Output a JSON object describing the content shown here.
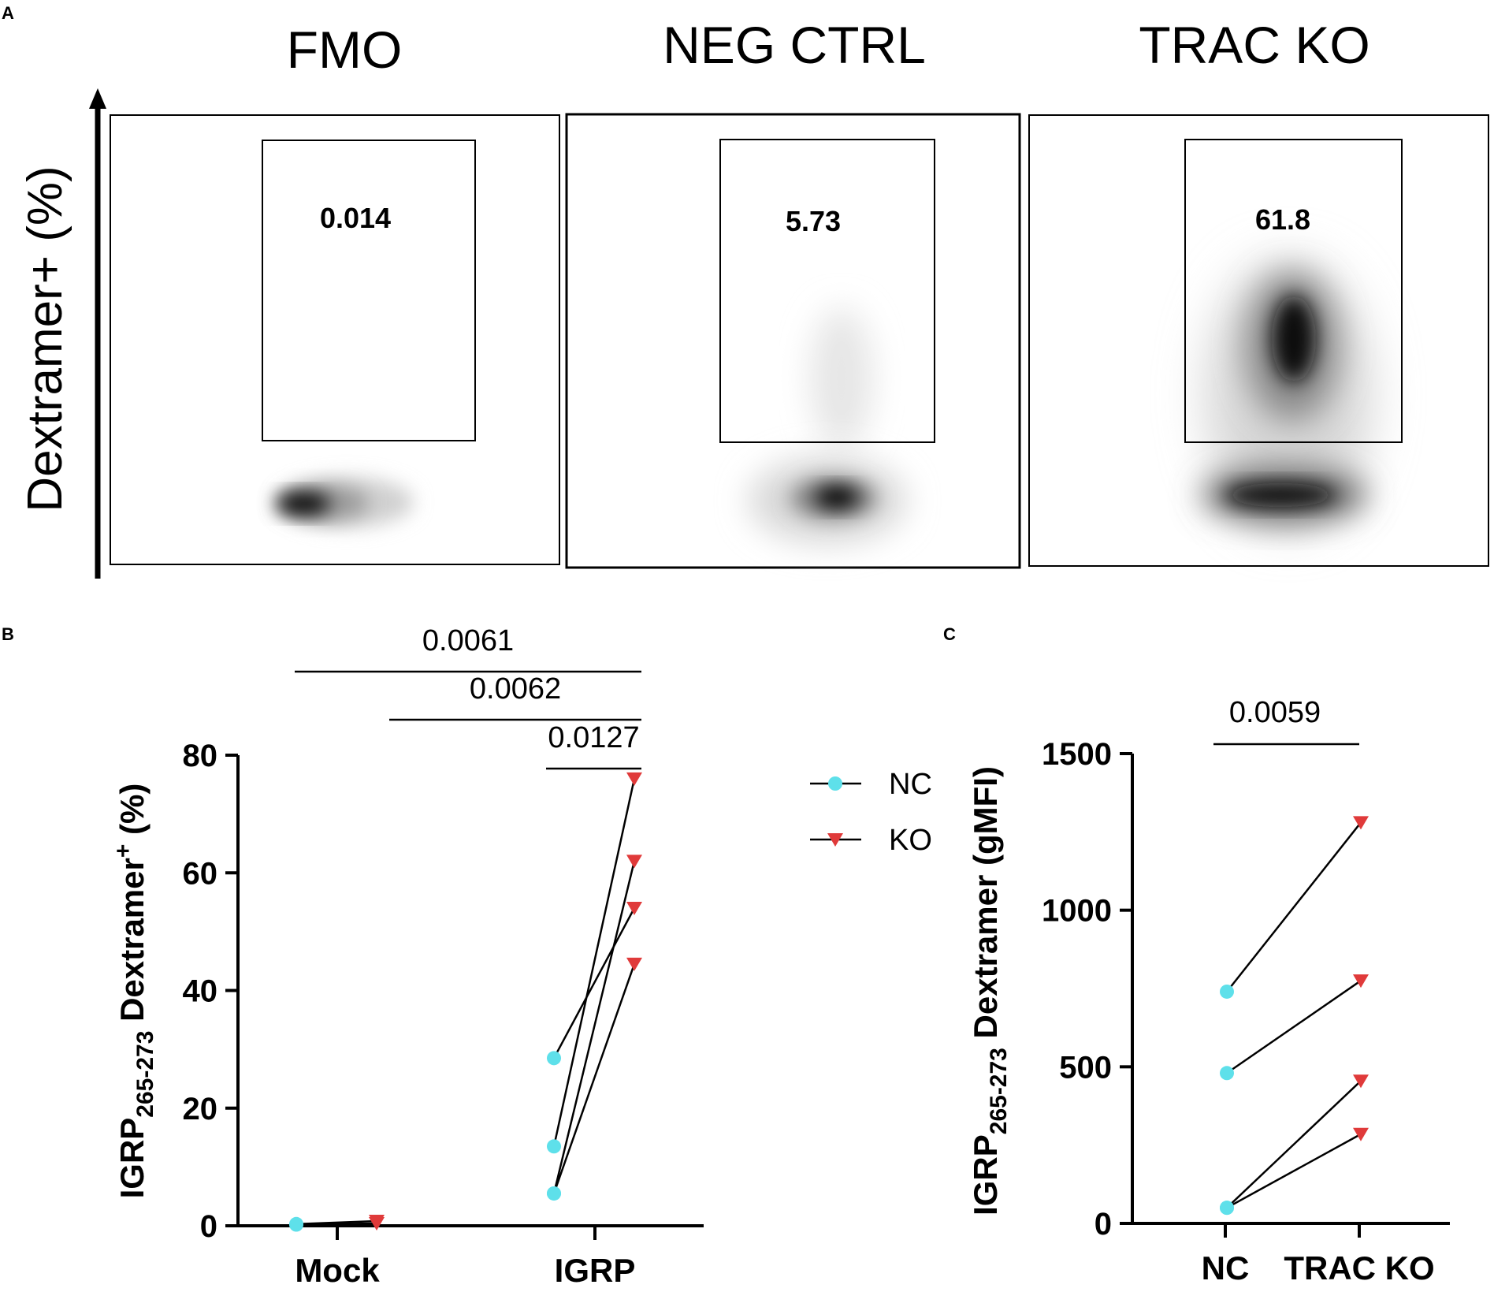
{
  "panel_a": {
    "letter": "A",
    "y_axis_label": "Dextramer+ (%)",
    "plots": [
      {
        "title": "FMO",
        "gate_value": "0.014"
      },
      {
        "title": "NEG CTRL",
        "gate_value": "5.73"
      },
      {
        "title": "TRAC KO",
        "gate_value": "61.8"
      }
    ]
  },
  "chart_data": [
    {
      "panel": "B",
      "type": "scatter",
      "categories": [
        "Mock",
        "IGRP"
      ],
      "ylabel_main": "IGRP",
      "ylabel_sub": "265-273",
      "ylabel_rest": " Dextramer",
      "ylabel_sup": "+",
      "ylabel_end": " (%)",
      "ylim": [
        0,
        80
      ],
      "yticks": [
        "0",
        "20",
        "40",
        "60",
        "80"
      ],
      "series": [
        {
          "name": "NC",
          "color": "#5ee0ea",
          "marker": "circle"
        },
        {
          "name": "KO",
          "color": "#e03a3a",
          "marker": "triangle-down"
        }
      ],
      "pairs": [
        {
          "group": "Mock",
          "nc": 0.3,
          "ko": 0.8
        },
        {
          "group": "Mock",
          "nc": 0.2,
          "ko": 0.4
        },
        {
          "group": "IGRP",
          "nc": 28.5,
          "ko": 54
        },
        {
          "group": "IGRP",
          "nc": 13.5,
          "ko": 76
        },
        {
          "group": "IGRP",
          "nc": 5.5,
          "ko": 62
        },
        {
          "group": "IGRP",
          "nc": 5.5,
          "ko": 44.5
        }
      ],
      "significance": [
        {
          "label": "0.0061"
        },
        {
          "label": "0.0062"
        },
        {
          "label": "0.0127"
        }
      ]
    },
    {
      "panel": "C",
      "type": "scatter",
      "categories": [
        "NC",
        "TRAC KO"
      ],
      "ylabel_main": "IGRP",
      "ylabel_sub": "265-273",
      "ylabel_rest": " Dextramer (gMFI)",
      "ylim": [
        0,
        1500
      ],
      "yticks": [
        "0",
        "500",
        "1000",
        "1500"
      ],
      "pairs": [
        {
          "nc": 740,
          "ko": 1280
        },
        {
          "nc": 480,
          "ko": 775
        },
        {
          "nc": 50,
          "ko": 455
        },
        {
          "nc": 50,
          "ko": 285
        }
      ],
      "significance": [
        {
          "label": "0.0059"
        }
      ]
    }
  ],
  "legend": {
    "entries": [
      {
        "label": "NC",
        "color": "#5ee0ea"
      },
      {
        "label": "KO",
        "color": "#e03a3a"
      }
    ]
  },
  "colors": {
    "nc": "#5ee0ea",
    "ko": "#e03a3a",
    "axis": "#000000"
  }
}
